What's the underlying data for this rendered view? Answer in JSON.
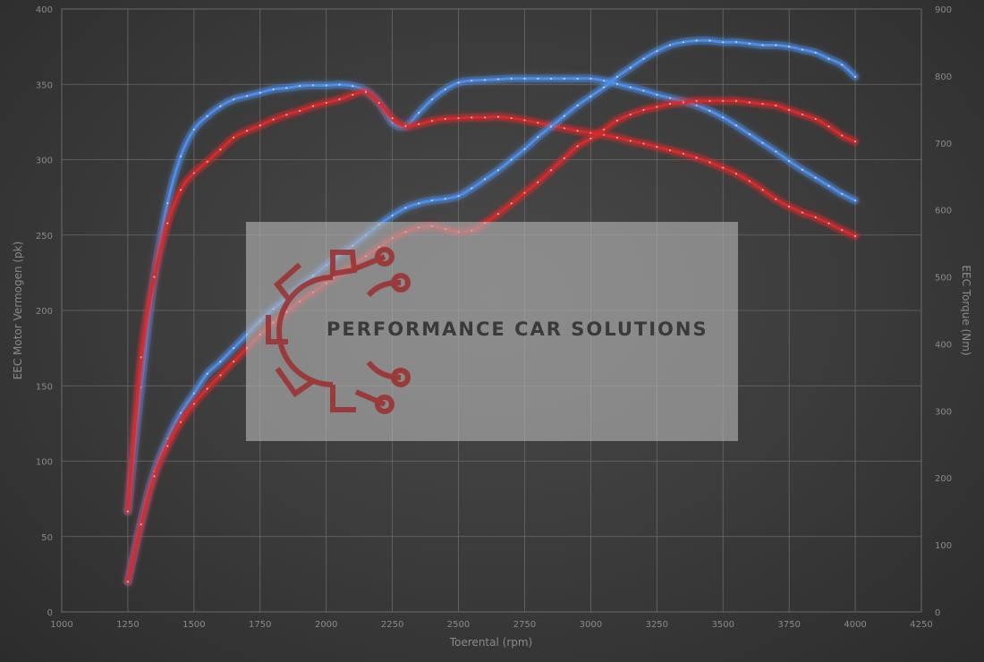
{
  "chart_data": {
    "type": "line",
    "xlabel": "Toerental (rpm)",
    "ylabel_left": "EEC Motor Vermogen (pk)",
    "ylabel_right": "EEC Torque (Nm)",
    "xlim": [
      1000,
      4250
    ],
    "ylim_left": [
      0,
      400
    ],
    "ylim_right": [
      0,
      900
    ],
    "x_ticks": [
      1000,
      1250,
      1500,
      1750,
      2000,
      2250,
      2500,
      2750,
      3000,
      3250,
      3500,
      3750,
      4000,
      4250
    ],
    "y_left_ticks": [
      0,
      50,
      100,
      150,
      200,
      250,
      300,
      350,
      400
    ],
    "y_right_ticks": [
      0,
      100,
      200,
      300,
      400,
      500,
      600,
      700,
      800,
      900
    ],
    "grid": true,
    "series": [
      {
        "axis": "right",
        "color": "#4f8ee8",
        "x": [
          1250,
          1300,
          1350,
          1400,
          1450,
          1500,
          1550,
          1600,
          1650,
          1700,
          1750,
          1800,
          1850,
          1900,
          1950,
          2000,
          2050,
          2100,
          2150,
          2200,
          2250,
          2300,
          2350,
          2400,
          2450,
          2500,
          2550,
          2600,
          2650,
          2700,
          2750,
          2800,
          2850,
          2900,
          2950,
          3000,
          3050,
          3100,
          3150,
          3200,
          3250,
          3300,
          3350,
          3400,
          3450,
          3500,
          3550,
          3600,
          3650,
          3700,
          3750,
          3800,
          3850,
          3900,
          3950,
          4000
        ],
        "values": [
          150,
          335,
          500,
          610,
          680,
          720,
          740,
          755,
          765,
          770,
          775,
          780,
          782,
          785,
          786,
          786,
          787,
          785,
          778,
          760,
          730,
          725,
          745,
          765,
          780,
          790,
          793,
          794,
          795,
          796,
          796,
          796,
          796,
          796,
          796,
          796,
          793,
          788,
          783,
          778,
          772,
          767,
          762,
          756,
          748,
          738,
          726,
          713,
          700,
          687,
          673,
          660,
          648,
          636,
          624,
          614
        ]
      },
      {
        "axis": "right",
        "color": "#d82a2a",
        "x": [
          1250,
          1300,
          1350,
          1400,
          1450,
          1500,
          1550,
          1600,
          1650,
          1700,
          1750,
          1800,
          1850,
          1900,
          1950,
          2000,
          2050,
          2100,
          2150,
          2200,
          2250,
          2300,
          2350,
          2400,
          2450,
          2500,
          2550,
          2600,
          2650,
          2700,
          2750,
          2800,
          2850,
          2900,
          2950,
          3000,
          3050,
          3100,
          3150,
          3200,
          3250,
          3300,
          3350,
          3400,
          3450,
          3500,
          3550,
          3600,
          3650,
          3700,
          3750,
          3800,
          3850,
          3900,
          3950,
          4000
        ],
        "values": [
          150,
          380,
          500,
          580,
          630,
          655,
          672,
          690,
          708,
          718,
          726,
          735,
          742,
          748,
          755,
          760,
          765,
          772,
          776,
          760,
          737,
          725,
          728,
          733,
          736,
          737,
          738,
          738,
          739,
          737,
          734,
          730,
          726,
          722,
          718,
          715,
          712,
          708,
          703,
          699,
          694,
          689,
          684,
          678,
          671,
          663,
          654,
          643,
          630,
          616,
          605,
          596,
          589,
          580,
          570,
          561
        ]
      },
      {
        "axis": "left",
        "color": "#4f8ee8",
        "x": [
          1250,
          1300,
          1350,
          1400,
          1450,
          1500,
          1550,
          1600,
          1650,
          1700,
          1750,
          1800,
          1850,
          1900,
          1950,
          2000,
          2050,
          2100,
          2150,
          2200,
          2250,
          2300,
          2350,
          2400,
          2450,
          2500,
          2550,
          2600,
          2650,
          2700,
          2750,
          2800,
          2850,
          2900,
          2950,
          3000,
          3050,
          3100,
          3150,
          3200,
          3250,
          3300,
          3350,
          3400,
          3450,
          3500,
          3550,
          3600,
          3650,
          3700,
          3750,
          3800,
          3850,
          3900,
          3950,
          4000
        ],
        "values": [
          20,
          60,
          93,
          115,
          132,
          145,
          158,
          166,
          175,
          184,
          193,
          201,
          208,
          216,
          223,
          230,
          237,
          243,
          250,
          257,
          263,
          268,
          271,
          273,
          274,
          276,
          281,
          287,
          293,
          300,
          307,
          315,
          322,
          329,
          336,
          342,
          348,
          355,
          361,
          367,
          372,
          376,
          378,
          379,
          379,
          378,
          378,
          377,
          376,
          376,
          375,
          373,
          371,
          367,
          363,
          355
        ]
      },
      {
        "axis": "left",
        "color": "#d82a2a",
        "x": [
          1250,
          1300,
          1350,
          1400,
          1450,
          1500,
          1550,
          1600,
          1650,
          1700,
          1750,
          1800,
          1850,
          1900,
          1950,
          2000,
          2050,
          2100,
          2150,
          2200,
          2250,
          2300,
          2350,
          2400,
          2450,
          2500,
          2550,
          2600,
          2650,
          2700,
          2750,
          2800,
          2850,
          2900,
          2950,
          3000,
          3050,
          3100,
          3150,
          3200,
          3250,
          3300,
          3350,
          3400,
          3450,
          3500,
          3550,
          3600,
          3650,
          3700,
          3750,
          3800,
          3850,
          3900,
          3950,
          4000
        ],
        "values": [
          20,
          58,
          90,
          110,
          126,
          138,
          148,
          157,
          166,
          175,
          184,
          192,
          199,
          206,
          212,
          218,
          224,
          230,
          236,
          242,
          248,
          252,
          255,
          256,
          254,
          252,
          253,
          258,
          264,
          271,
          278,
          285,
          293,
          301,
          309,
          314,
          320,
          326,
          330,
          333,
          335,
          337,
          338,
          339,
          339,
          339,
          339,
          338,
          337,
          336,
          333,
          330,
          327,
          322,
          316,
          312
        ]
      }
    ]
  },
  "watermark": {
    "text": "PERFORMANCE CAR SOLUTIONS"
  }
}
